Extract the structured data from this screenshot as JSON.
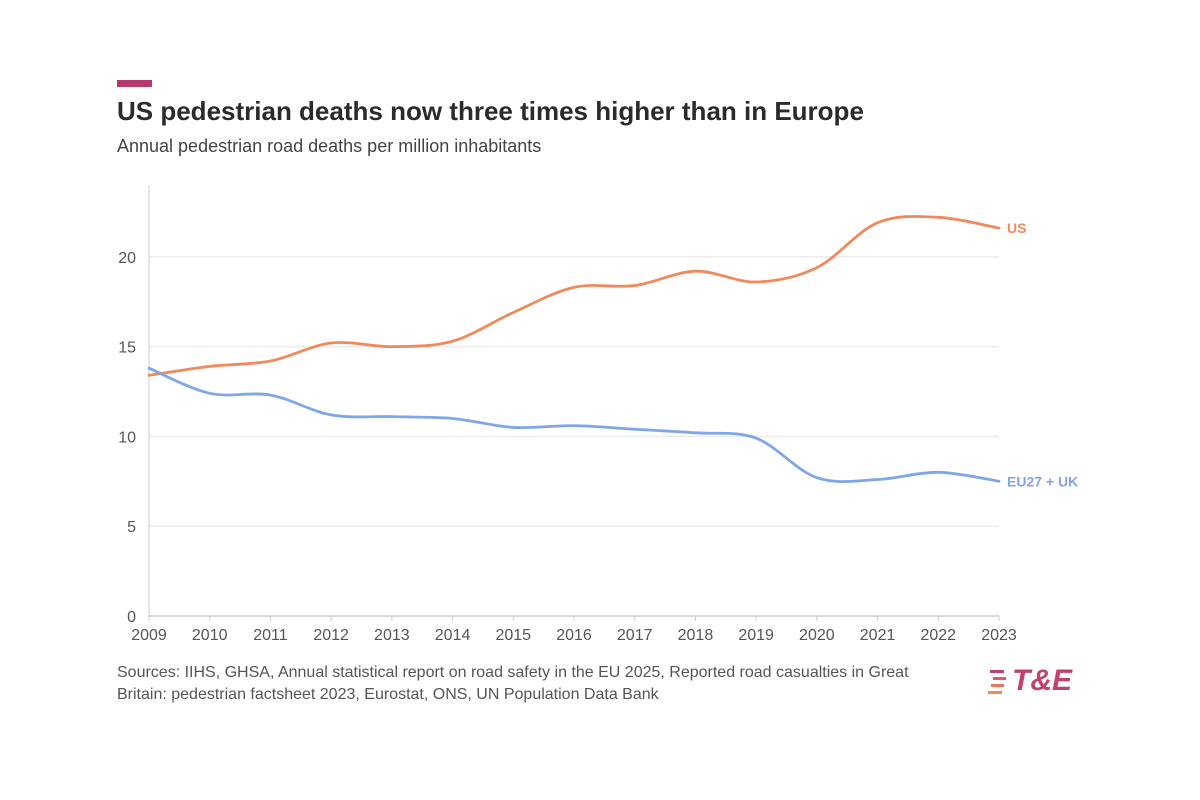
{
  "header": {
    "title": "US pedestrian deaths now three times higher than in Europe",
    "subtitle": "Annual pedestrian road deaths per million inhabitants"
  },
  "colors": {
    "accent": "#b5396b",
    "us": "#f08a5d",
    "eu": "#7ea6e8",
    "grid": "#ececec"
  },
  "chart_data": {
    "type": "line",
    "x": [
      2009,
      2010,
      2011,
      2012,
      2013,
      2014,
      2015,
      2016,
      2017,
      2018,
      2019,
      2020,
      2021,
      2022,
      2023
    ],
    "series": [
      {
        "name": "US",
        "values": [
          13.4,
          13.9,
          14.2,
          15.2,
          15.0,
          15.3,
          16.9,
          18.3,
          18.4,
          19.2,
          18.6,
          19.4,
          21.9,
          22.2,
          21.6
        ]
      },
      {
        "name": "EU27 + UK",
        "values": [
          13.8,
          12.4,
          12.3,
          11.2,
          11.1,
          11.0,
          10.5,
          10.6,
          10.4,
          10.2,
          9.9,
          7.7,
          7.6,
          8.0,
          7.5
        ]
      }
    ],
    "yticks": [
      0,
      5,
      10,
      15,
      20
    ],
    "ylim": [
      0,
      24
    ],
    "grid": true
  },
  "footer": {
    "source": "Sources: IIHS, GHSA, Annual statistical report on road safety in the EU 2025, Reported road casualties in Great Britain: pedestrian factsheet 2023, Eurostat, ONS, UN Population Data Bank",
    "logo_text": "T&E"
  }
}
